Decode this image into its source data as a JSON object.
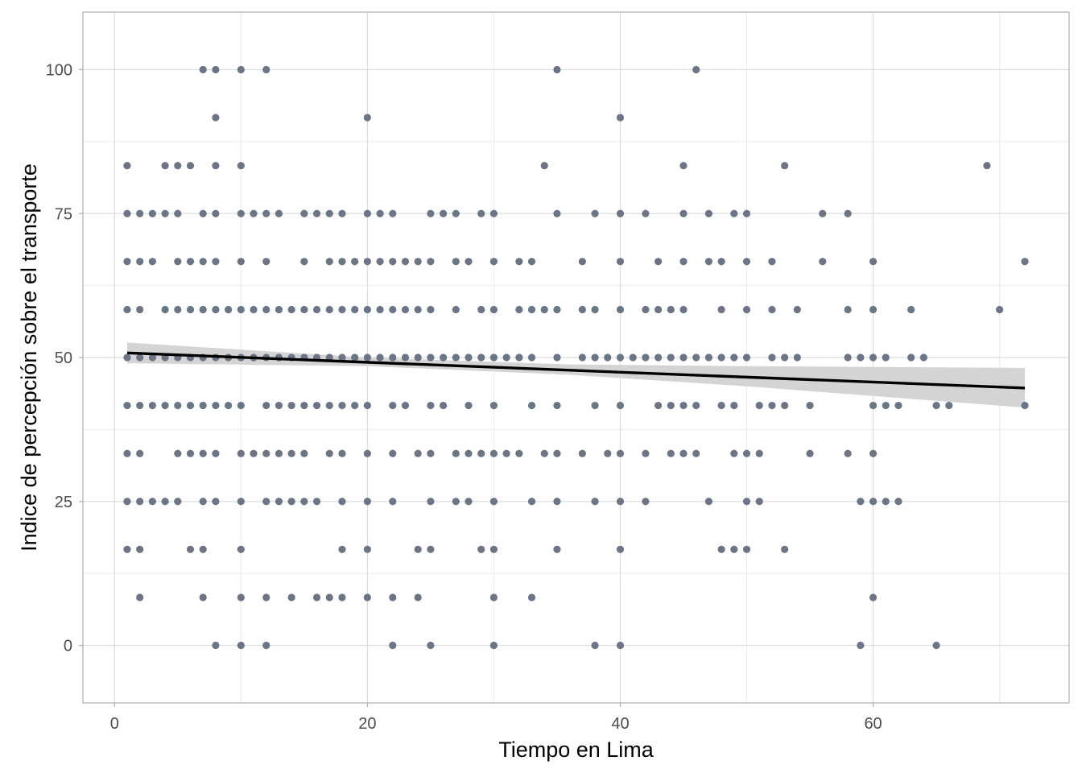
{
  "chart_data": {
    "type": "scatter",
    "xlabel": "Tiempo en Lima",
    "ylabel": "Indice de percepción sobre el transporte",
    "xlim": [
      -2.5,
      75.5
    ],
    "ylim": [
      -10,
      110
    ],
    "x_ticks": [
      0,
      20,
      40,
      60
    ],
    "y_ticks": [
      0,
      25,
      50,
      75,
      100
    ],
    "x_minor": [
      10,
      30,
      50,
      70
    ],
    "y_minor": [
      12.5,
      37.5,
      62.5,
      87.5
    ],
    "grid": true,
    "point_color": "#6b7585",
    "fit_color": "#000000",
    "band_color": "#d4d4d4",
    "points": [
      [
        7,
        100
      ],
      [
        8,
        100
      ],
      [
        10,
        100
      ],
      [
        12,
        100
      ],
      [
        35,
        100
      ],
      [
        46,
        100
      ],
      [
        8,
        91.67
      ],
      [
        20,
        91.67
      ],
      [
        40,
        91.67
      ],
      [
        1,
        83.33
      ],
      [
        4,
        83.33
      ],
      [
        5,
        83.33
      ],
      [
        6,
        83.33
      ],
      [
        8,
        83.33
      ],
      [
        10,
        83.33
      ],
      [
        34,
        83.33
      ],
      [
        45,
        83.33
      ],
      [
        53,
        83.33
      ],
      [
        69,
        83.33
      ],
      [
        1,
        75
      ],
      [
        2,
        75
      ],
      [
        3,
        75
      ],
      [
        4,
        75
      ],
      [
        5,
        75
      ],
      [
        7,
        75
      ],
      [
        8,
        75
      ],
      [
        10,
        75
      ],
      [
        11,
        75
      ],
      [
        12,
        75
      ],
      [
        13,
        75
      ],
      [
        15,
        75
      ],
      [
        16,
        75
      ],
      [
        17,
        75
      ],
      [
        18,
        75
      ],
      [
        20,
        75
      ],
      [
        21,
        75
      ],
      [
        22,
        75
      ],
      [
        25,
        75
      ],
      [
        26,
        75
      ],
      [
        27,
        75
      ],
      [
        29,
        75
      ],
      [
        30,
        75
      ],
      [
        35,
        75
      ],
      [
        38,
        75
      ],
      [
        40,
        75
      ],
      [
        42,
        75
      ],
      [
        45,
        75
      ],
      [
        47,
        75
      ],
      [
        49,
        75
      ],
      [
        50,
        75
      ],
      [
        56,
        75
      ],
      [
        58,
        75
      ],
      [
        1,
        66.67
      ],
      [
        2,
        66.67
      ],
      [
        3,
        66.67
      ],
      [
        5,
        66.67
      ],
      [
        6,
        66.67
      ],
      [
        7,
        66.67
      ],
      [
        8,
        66.67
      ],
      [
        10,
        66.67
      ],
      [
        12,
        66.67
      ],
      [
        15,
        66.67
      ],
      [
        17,
        66.67
      ],
      [
        18,
        66.67
      ],
      [
        19,
        66.67
      ],
      [
        20,
        66.67
      ],
      [
        21,
        66.67
      ],
      [
        22,
        66.67
      ],
      [
        23,
        66.67
      ],
      [
        24,
        66.67
      ],
      [
        25,
        66.67
      ],
      [
        27,
        66.67
      ],
      [
        28,
        66.67
      ],
      [
        30,
        66.67
      ],
      [
        32,
        66.67
      ],
      [
        33,
        66.67
      ],
      [
        37,
        66.67
      ],
      [
        40,
        66.67
      ],
      [
        43,
        66.67
      ],
      [
        45,
        66.67
      ],
      [
        47,
        66.67
      ],
      [
        48,
        66.67
      ],
      [
        50,
        66.67
      ],
      [
        52,
        66.67
      ],
      [
        56,
        66.67
      ],
      [
        60,
        66.67
      ],
      [
        72,
        66.67
      ],
      [
        1,
        58.33
      ],
      [
        2,
        58.33
      ],
      [
        4,
        58.33
      ],
      [
        5,
        58.33
      ],
      [
        6,
        58.33
      ],
      [
        7,
        58.33
      ],
      [
        8,
        58.33
      ],
      [
        9,
        58.33
      ],
      [
        10,
        58.33
      ],
      [
        11,
        58.33
      ],
      [
        12,
        58.33
      ],
      [
        13,
        58.33
      ],
      [
        14,
        58.33
      ],
      [
        15,
        58.33
      ],
      [
        16,
        58.33
      ],
      [
        17,
        58.33
      ],
      [
        18,
        58.33
      ],
      [
        19,
        58.33
      ],
      [
        20,
        58.33
      ],
      [
        21,
        58.33
      ],
      [
        22,
        58.33
      ],
      [
        23,
        58.33
      ],
      [
        24,
        58.33
      ],
      [
        25,
        58.33
      ],
      [
        27,
        58.33
      ],
      [
        29,
        58.33
      ],
      [
        30,
        58.33
      ],
      [
        32,
        58.33
      ],
      [
        33,
        58.33
      ],
      [
        34,
        58.33
      ],
      [
        35,
        58.33
      ],
      [
        37,
        58.33
      ],
      [
        38,
        58.33
      ],
      [
        40,
        58.33
      ],
      [
        42,
        58.33
      ],
      [
        43,
        58.33
      ],
      [
        44,
        58.33
      ],
      [
        45,
        58.33
      ],
      [
        48,
        58.33
      ],
      [
        50,
        58.33
      ],
      [
        52,
        58.33
      ],
      [
        54,
        58.33
      ],
      [
        58,
        58.33
      ],
      [
        60,
        58.33
      ],
      [
        63,
        58.33
      ],
      [
        70,
        58.33
      ],
      [
        1,
        50
      ],
      [
        2,
        50
      ],
      [
        3,
        50
      ],
      [
        4,
        50
      ],
      [
        5,
        50
      ],
      [
        6,
        50
      ],
      [
        7,
        50
      ],
      [
        8,
        50
      ],
      [
        9,
        50
      ],
      [
        10,
        50
      ],
      [
        11,
        50
      ],
      [
        12,
        50
      ],
      [
        13,
        50
      ],
      [
        14,
        50
      ],
      [
        15,
        50
      ],
      [
        16,
        50
      ],
      [
        17,
        50
      ],
      [
        18,
        50
      ],
      [
        19,
        50
      ],
      [
        20,
        50
      ],
      [
        21,
        50
      ],
      [
        22,
        50
      ],
      [
        23,
        50
      ],
      [
        24,
        50
      ],
      [
        25,
        50
      ],
      [
        26,
        50
      ],
      [
        27,
        50
      ],
      [
        28,
        50
      ],
      [
        29,
        50
      ],
      [
        30,
        50
      ],
      [
        31,
        50
      ],
      [
        32,
        50
      ],
      [
        33,
        50
      ],
      [
        35,
        50
      ],
      [
        37,
        50
      ],
      [
        38,
        50
      ],
      [
        39,
        50
      ],
      [
        40,
        50
      ],
      [
        41,
        50
      ],
      [
        42,
        50
      ],
      [
        43,
        50
      ],
      [
        44,
        50
      ],
      [
        45,
        50
      ],
      [
        46,
        50
      ],
      [
        47,
        50
      ],
      [
        48,
        50
      ],
      [
        49,
        50
      ],
      [
        50,
        50
      ],
      [
        52,
        50
      ],
      [
        53,
        50
      ],
      [
        54,
        50
      ],
      [
        58,
        50
      ],
      [
        59,
        50
      ],
      [
        60,
        50
      ],
      [
        61,
        50
      ],
      [
        63,
        50
      ],
      [
        64,
        50
      ],
      [
        1,
        41.67
      ],
      [
        2,
        41.67
      ],
      [
        3,
        41.67
      ],
      [
        4,
        41.67
      ],
      [
        5,
        41.67
      ],
      [
        6,
        41.67
      ],
      [
        7,
        41.67
      ],
      [
        8,
        41.67
      ],
      [
        9,
        41.67
      ],
      [
        10,
        41.67
      ],
      [
        12,
        41.67
      ],
      [
        13,
        41.67
      ],
      [
        14,
        41.67
      ],
      [
        15,
        41.67
      ],
      [
        16,
        41.67
      ],
      [
        17,
        41.67
      ],
      [
        18,
        41.67
      ],
      [
        19,
        41.67
      ],
      [
        20,
        41.67
      ],
      [
        22,
        41.67
      ],
      [
        23,
        41.67
      ],
      [
        25,
        41.67
      ],
      [
        26,
        41.67
      ],
      [
        28,
        41.67
      ],
      [
        30,
        41.67
      ],
      [
        33,
        41.67
      ],
      [
        35,
        41.67
      ],
      [
        38,
        41.67
      ],
      [
        40,
        41.67
      ],
      [
        43,
        41.67
      ],
      [
        44,
        41.67
      ],
      [
        45,
        41.67
      ],
      [
        46,
        41.67
      ],
      [
        48,
        41.67
      ],
      [
        49,
        41.67
      ],
      [
        51,
        41.67
      ],
      [
        52,
        41.67
      ],
      [
        53,
        41.67
      ],
      [
        55,
        41.67
      ],
      [
        60,
        41.67
      ],
      [
        61,
        41.67
      ],
      [
        62,
        41.67
      ],
      [
        65,
        41.67
      ],
      [
        66,
        41.67
      ],
      [
        72,
        41.67
      ],
      [
        1,
        33.33
      ],
      [
        2,
        33.33
      ],
      [
        5,
        33.33
      ],
      [
        6,
        33.33
      ],
      [
        7,
        33.33
      ],
      [
        8,
        33.33
      ],
      [
        10,
        33.33
      ],
      [
        11,
        33.33
      ],
      [
        12,
        33.33
      ],
      [
        13,
        33.33
      ],
      [
        14,
        33.33
      ],
      [
        15,
        33.33
      ],
      [
        17,
        33.33
      ],
      [
        18,
        33.33
      ],
      [
        20,
        33.33
      ],
      [
        22,
        33.33
      ],
      [
        24,
        33.33
      ],
      [
        25,
        33.33
      ],
      [
        27,
        33.33
      ],
      [
        28,
        33.33
      ],
      [
        29,
        33.33
      ],
      [
        30,
        33.33
      ],
      [
        31,
        33.33
      ],
      [
        32,
        33.33
      ],
      [
        34,
        33.33
      ],
      [
        35,
        33.33
      ],
      [
        37,
        33.33
      ],
      [
        39,
        33.33
      ],
      [
        40,
        33.33
      ],
      [
        42,
        33.33
      ],
      [
        44,
        33.33
      ],
      [
        45,
        33.33
      ],
      [
        46,
        33.33
      ],
      [
        49,
        33.33
      ],
      [
        50,
        33.33
      ],
      [
        51,
        33.33
      ],
      [
        55,
        33.33
      ],
      [
        58,
        33.33
      ],
      [
        60,
        33.33
      ],
      [
        1,
        25
      ],
      [
        2,
        25
      ],
      [
        3,
        25
      ],
      [
        4,
        25
      ],
      [
        5,
        25
      ],
      [
        7,
        25
      ],
      [
        8,
        25
      ],
      [
        10,
        25
      ],
      [
        12,
        25
      ],
      [
        13,
        25
      ],
      [
        14,
        25
      ],
      [
        15,
        25
      ],
      [
        16,
        25
      ],
      [
        18,
        25
      ],
      [
        20,
        25
      ],
      [
        22,
        25
      ],
      [
        25,
        25
      ],
      [
        27,
        25
      ],
      [
        28,
        25
      ],
      [
        30,
        25
      ],
      [
        33,
        25
      ],
      [
        35,
        25
      ],
      [
        38,
        25
      ],
      [
        40,
        25
      ],
      [
        42,
        25
      ],
      [
        47,
        25
      ],
      [
        50,
        25
      ],
      [
        51,
        25
      ],
      [
        59,
        25
      ],
      [
        60,
        25
      ],
      [
        61,
        25
      ],
      [
        62,
        25
      ],
      [
        1,
        16.67
      ],
      [
        2,
        16.67
      ],
      [
        6,
        16.67
      ],
      [
        7,
        16.67
      ],
      [
        10,
        16.67
      ],
      [
        18,
        16.67
      ],
      [
        20,
        16.67
      ],
      [
        24,
        16.67
      ],
      [
        25,
        16.67
      ],
      [
        29,
        16.67
      ],
      [
        30,
        16.67
      ],
      [
        35,
        16.67
      ],
      [
        40,
        16.67
      ],
      [
        48,
        16.67
      ],
      [
        49,
        16.67
      ],
      [
        50,
        16.67
      ],
      [
        53,
        16.67
      ],
      [
        2,
        8.33
      ],
      [
        7,
        8.33
      ],
      [
        10,
        8.33
      ],
      [
        12,
        8.33
      ],
      [
        14,
        8.33
      ],
      [
        16,
        8.33
      ],
      [
        17,
        8.33
      ],
      [
        18,
        8.33
      ],
      [
        20,
        8.33
      ],
      [
        22,
        8.33
      ],
      [
        24,
        8.33
      ],
      [
        30,
        8.33
      ],
      [
        33,
        8.33
      ],
      [
        60,
        8.33
      ],
      [
        8,
        0
      ],
      [
        10,
        0
      ],
      [
        12,
        0
      ],
      [
        22,
        0
      ],
      [
        25,
        0
      ],
      [
        30,
        0
      ],
      [
        38,
        0
      ],
      [
        40,
        0
      ],
      [
        59,
        0
      ],
      [
        65,
        0
      ]
    ],
    "fit_line": {
      "x_start": 1,
      "x_end": 72,
      "y_start": 50.8,
      "y_end": 44.7
    },
    "confidence_band": [
      [
        1,
        52.6,
        49.0
      ],
      [
        20,
        50.0,
        48.5
      ],
      [
        36,
        48.8,
        47.0
      ],
      [
        50,
        48.5,
        45.0
      ],
      [
        72,
        48.2,
        41.3
      ]
    ]
  }
}
